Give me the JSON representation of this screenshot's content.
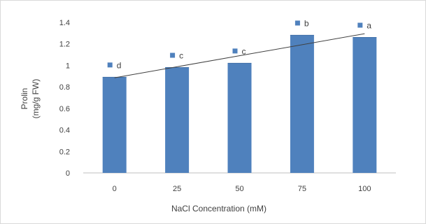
{
  "chart_data": {
    "type": "bar",
    "categories": [
      "0",
      "25",
      "50",
      "75",
      "100"
    ],
    "values": [
      0.89,
      0.98,
      1.02,
      1.28,
      1.26
    ],
    "significance_letters": [
      "d",
      "c",
      "c",
      "b",
      "a"
    ],
    "trendline": {
      "type": "linear",
      "start": 0.885,
      "end": 1.295
    },
    "xlabel": "NaCl Concentration (mM)",
    "ylabel_line1": "Prolin",
    "ylabel_line2": "(mg/g FW)",
    "ylim": [
      0,
      1.4
    ],
    "yticks": [
      "0",
      "0.2",
      "0.4",
      "0.6",
      "0.8",
      "1",
      "1.2",
      "1.4"
    ],
    "grid": false,
    "colors": {
      "bar": "#4f81bd",
      "marker": "#4f81bd",
      "trendline": "#404040",
      "axis": "#bfbfbf"
    }
  }
}
